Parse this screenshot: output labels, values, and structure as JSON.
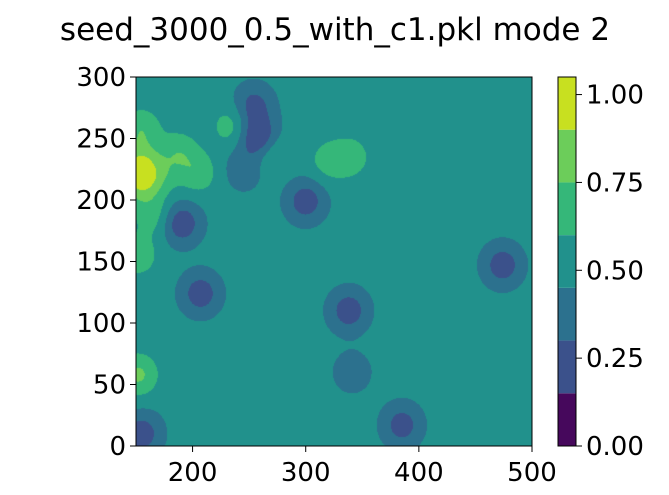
{
  "chart_data": {
    "type": "heatmap",
    "subtype": "filled-contour",
    "title": "seed_3000_0.5_with_c1.pkl mode 2",
    "xlabel": "",
    "ylabel": "",
    "xlim": [
      150,
      500
    ],
    "ylim": [
      0,
      300
    ],
    "x_ticks": [
      200,
      300,
      400,
      500
    ],
    "y_ticks": [
      0,
      50,
      100,
      150,
      200,
      250,
      300
    ],
    "background_value": 0.5,
    "colorbar": {
      "range": [
        0.0,
        1.05
      ],
      "ticks": [
        0.0,
        0.25,
        0.5,
        0.75,
        1.0
      ],
      "tick_labels": [
        "0.00",
        "0.25",
        "0.50",
        "0.75",
        "1.00"
      ],
      "levels": [
        0.0,
        0.15,
        0.3,
        0.45,
        0.6,
        0.75,
        0.9,
        1.05
      ],
      "colors": [
        "#46085c",
        "#3b518b",
        "#2c718e",
        "#21918c",
        "#35b779",
        "#6ccd5a",
        "#c8e020"
      ]
    },
    "blobs": [
      {
        "x": 474,
        "y": 147,
        "value": 0.2
      },
      {
        "x": 338,
        "y": 110,
        "value": 0.2
      },
      {
        "x": 300,
        "y": 199,
        "value": 0.2
      },
      {
        "x": 385,
        "y": 17,
        "value": 0.22
      },
      {
        "x": 207,
        "y": 124,
        "value": 0.2
      },
      {
        "x": 190,
        "y": 181,
        "value": 0.17
      },
      {
        "x": 254,
        "y": 277,
        "value": 0.24
      },
      {
        "x": 259,
        "y": 250,
        "value": 0.08
      },
      {
        "x": 245,
        "y": 225,
        "value": 0.34
      },
      {
        "x": 341,
        "y": 60,
        "value": 0.36
      },
      {
        "x": 155,
        "y": 10,
        "value": 0.2
      },
      {
        "x": 153,
        "y": 230,
        "value": 0.82
      },
      {
        "x": 153,
        "y": 213,
        "value": 0.8
      },
      {
        "x": 155,
        "y": 258,
        "value": 0.72
      },
      {
        "x": 152,
        "y": 58,
        "value": 0.78
      },
      {
        "x": 152,
        "y": 155,
        "value": 0.7
      },
      {
        "x": 166,
        "y": 187,
        "value": 0.68
      },
      {
        "x": 205,
        "y": 222,
        "value": 0.7
      },
      {
        "x": 234,
        "y": 260,
        "value": 0.68
      },
      {
        "x": 268,
        "y": 240,
        "value": 0.7
      },
      {
        "x": 340,
        "y": 235,
        "value": 0.68
      },
      {
        "x": 320,
        "y": 232,
        "value": 0.66
      },
      {
        "x": 188,
        "y": 239,
        "value": 0.7
      },
      {
        "x": 170,
        "y": 220,
        "value": 0.66
      }
    ]
  }
}
